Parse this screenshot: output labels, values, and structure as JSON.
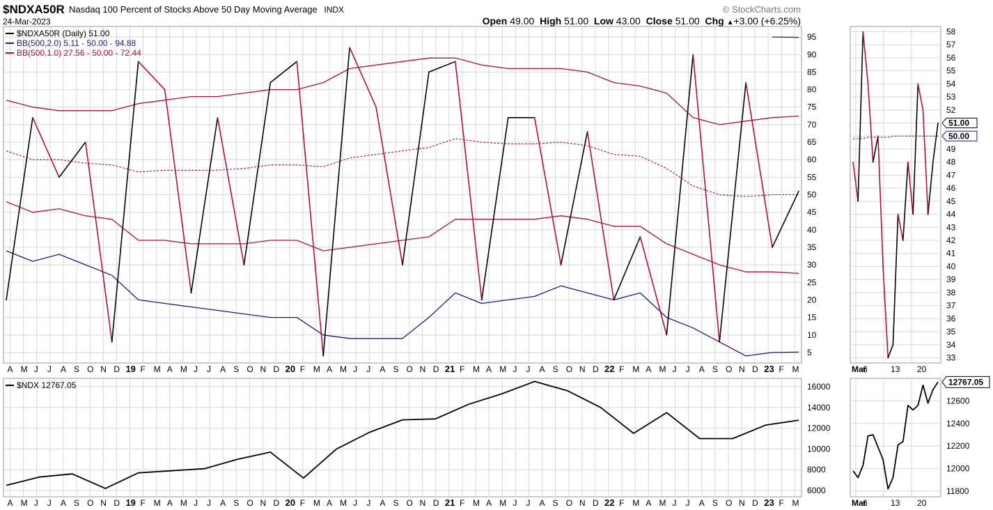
{
  "header": {
    "symbol": "$NDXA50R",
    "description": "Nasdaq 100 Percent of Stocks Above 50 Day Moving Average",
    "exchange": "INDX",
    "date": "24-Mar-2023",
    "brand": "© StockCharts.com",
    "open_label": "Open",
    "open_value": "49.00",
    "high_label": "High",
    "high_value": "51.00",
    "low_label": "Low",
    "low_value": "43.00",
    "close_label": "Close",
    "close_value": "51.00",
    "chg_label": "Chg",
    "chg_value": "+3.00 (+6.25%)",
    "chg_arrow": "▲"
  },
  "colors": {
    "up": "#000000",
    "down": "#b0103a",
    "bb2": "#1a1a8c",
    "bb1": "#b0103a",
    "grid": "#d8d8d8",
    "badge_border": "#1a1a8c"
  },
  "legend": {
    "main": "$NDXA50R (Daily) 51.00",
    "bb2": "BB(500,2.0) 5.11 - 50.00 - 94.88",
    "bb1": "BB(500,1.0) 27.56 - 50.00 - 72.44",
    "ndx": "$NDX 12767.05"
  },
  "badges": {
    "last": "51.00",
    "mid": "50.00",
    "ndx_last": "12767.05"
  },
  "x_months": [
    "A",
    "M",
    "J",
    "J",
    "A",
    "S",
    "O",
    "N",
    "D",
    "19",
    "F",
    "M",
    "A",
    "M",
    "J",
    "J",
    "A",
    "S",
    "O",
    "N",
    "D",
    "20",
    "F",
    "M",
    "A",
    "M",
    "J",
    "J",
    "A",
    "S",
    "O",
    "N",
    "D",
    "21",
    "F",
    "M",
    "A",
    "M",
    "J",
    "J",
    "A",
    "S",
    "O",
    "N",
    "D",
    "22",
    "F",
    "M",
    "A",
    "M",
    "J",
    "J",
    "A",
    "S",
    "O",
    "N",
    "D",
    "23",
    "F",
    "M"
  ],
  "x_zoom": [
    "Mar",
    "6",
    "13",
    "20"
  ],
  "chart_data": [
    {
      "type": "line",
      "title": "$NDXA50R (Daily)",
      "ylim": [
        2,
        98
      ],
      "yticks": [
        5,
        10,
        15,
        20,
        25,
        30,
        35,
        40,
        45,
        50,
        55,
        60,
        65,
        70,
        75,
        80,
        85,
        90,
        95
      ],
      "x": [
        "2018-04",
        "2018-06",
        "2018-08",
        "2018-10",
        "2018-12",
        "2019-02",
        "2019-04",
        "2019-06",
        "2019-08",
        "2019-10",
        "2019-12",
        "2020-02",
        "2020-03",
        "2020-05",
        "2020-07",
        "2020-09",
        "2020-11",
        "2021-01",
        "2021-03",
        "2021-05",
        "2021-07",
        "2021-09",
        "2021-11",
        "2022-01",
        "2022-03",
        "2022-05",
        "2022-07",
        "2022-09",
        "2022-11",
        "2023-01",
        "2023-03-24"
      ],
      "series": [
        {
          "name": "$NDXA50R",
          "values": [
            20,
            72,
            55,
            65,
            8,
            88,
            80,
            22,
            72,
            30,
            82,
            88,
            4,
            92,
            75,
            30,
            85,
            88,
            20,
            72,
            72,
            30,
            68,
            20,
            38,
            10,
            90,
            8,
            82,
            35,
            51
          ]
        },
        {
          "name": "BB(500,2.0) upper",
          "values": [
            null,
            null,
            null,
            null,
            null,
            null,
            null,
            null,
            null,
            null,
            null,
            null,
            null,
            null,
            null,
            null,
            null,
            null,
            null,
            null,
            null,
            null,
            null,
            null,
            null,
            null,
            null,
            null,
            null,
            95,
            94.88
          ]
        },
        {
          "name": "BB(500,2.0) lower",
          "values": [
            34,
            31,
            33,
            30,
            27,
            20,
            19,
            18,
            17,
            16,
            15,
            15,
            10,
            9,
            9,
            9,
            15,
            22,
            19,
            20,
            21,
            24,
            22,
            20,
            22,
            15,
            12,
            8,
            4,
            5,
            5.11
          ]
        },
        {
          "name": "BB(500,1.0) upper",
          "values": [
            77,
            75,
            74,
            74,
            74,
            76,
            77,
            78,
            78,
            79,
            80,
            80,
            82,
            86,
            87,
            88,
            89,
            89,
            87,
            86,
            86,
            86,
            85,
            82,
            81,
            79,
            72,
            70,
            71,
            72,
            72.44
          ]
        },
        {
          "name": "BB(500,1.0) lower",
          "values": [
            48,
            45,
            46,
            44,
            43,
            37,
            37,
            36,
            36,
            36,
            37,
            37,
            34,
            35,
            36,
            37,
            38,
            43,
            43,
            43,
            43,
            44,
            43,
            41,
            41,
            36,
            33,
            30,
            28,
            28,
            27.56
          ]
        }
      ]
    },
    {
      "type": "line",
      "title": "$NDXA50R Mar 2023",
      "ylim": [
        32.6,
        58.4
      ],
      "yticks": [
        33,
        34,
        35,
        36,
        37,
        38,
        39,
        40,
        41,
        42,
        43,
        44,
        45,
        46,
        47,
        48,
        49,
        50,
        51,
        52,
        53,
        54,
        55,
        56,
        57,
        58
      ],
      "x": [
        "Mar 1",
        "Mar 2",
        "Mar 3",
        "Mar 6",
        "Mar 7",
        "Mar 8",
        "Mar 9",
        "Mar 10",
        "Mar 13",
        "Mar 14",
        "Mar 15",
        "Mar 16",
        "Mar 17",
        "Mar 20",
        "Mar 21",
        "Mar 22",
        "Mar 23",
        "Mar 24"
      ],
      "series": [
        {
          "name": "$NDXA50R",
          "values": [
            48,
            45,
            58,
            54,
            48,
            50,
            40,
            33,
            34,
            44,
            42,
            48,
            44,
            54,
            52,
            44,
            48,
            51
          ]
        },
        {
          "name": "BB mid",
          "values": [
            49.8,
            49.8,
            49.8,
            49.9,
            49.9,
            49.9,
            49.9,
            49.9,
            50,
            50,
            50,
            50,
            50,
            50,
            50,
            50,
            50,
            50
          ]
        }
      ]
    },
    {
      "type": "line",
      "title": "$NDX",
      "ylim": [
        5400,
        16800
      ],
      "yticks": [
        6000,
        8000,
        10000,
        12000,
        14000,
        16000
      ],
      "x": [
        "2018-04",
        "2018-07",
        "2018-10",
        "2018-12",
        "2019-04",
        "2019-07",
        "2019-10",
        "2020-01",
        "2020-02",
        "2020-03",
        "2020-06",
        "2020-09",
        "2020-12",
        "2021-03",
        "2021-06",
        "2021-09",
        "2021-11",
        "2022-01",
        "2022-03",
        "2022-06",
        "2022-08",
        "2022-10",
        "2022-12",
        "2023-02",
        "2023-03-24"
      ],
      "series": [
        {
          "name": "$NDX",
          "values": [
            6500,
            7300,
            7600,
            6200,
            7700,
            7900,
            8100,
            9000,
            9700,
            7200,
            10000,
            11600,
            12800,
            12900,
            14300,
            15300,
            16500,
            15600,
            14000,
            11500,
            13500,
            11000,
            11000,
            12300,
            12767
          ]
        }
      ]
    },
    {
      "type": "line",
      "title": "$NDX Mar 2023",
      "ylim": [
        11750,
        12800
      ],
      "yticks": [
        11800,
        12000,
        12200,
        12400,
        12600
      ],
      "x": [
        "Mar 1",
        "Mar 2",
        "Mar 3",
        "Mar 6",
        "Mar 7",
        "Mar 8",
        "Mar 9",
        "Mar 10",
        "Mar 13",
        "Mar 14",
        "Mar 15",
        "Mar 16",
        "Mar 17",
        "Mar 20",
        "Mar 21",
        "Mar 22",
        "Mar 23",
        "Mar 24"
      ],
      "series": [
        {
          "name": "$NDX",
          "values": [
            11980,
            11920,
            12030,
            12290,
            12300,
            12190,
            12080,
            11820,
            11920,
            12210,
            12240,
            12560,
            12520,
            12560,
            12740,
            12580,
            12700,
            12767
          ]
        }
      ]
    }
  ]
}
